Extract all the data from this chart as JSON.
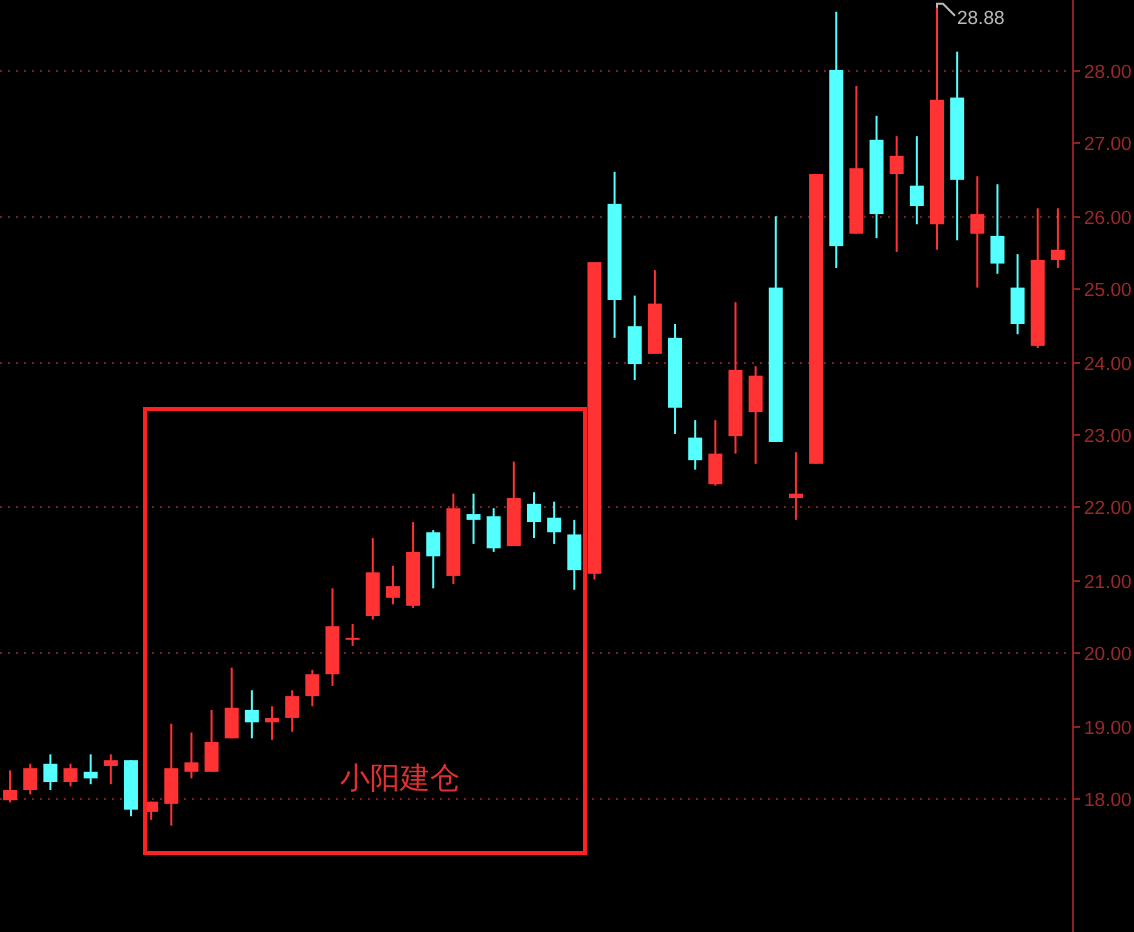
{
  "chart_data": {
    "type": "candlestick",
    "categories": [
      null,
      null,
      null,
      null,
      null,
      null,
      null,
      null,
      null,
      null,
      null,
      null,
      null,
      null,
      null,
      null,
      null,
      null,
      null,
      null,
      null,
      null,
      null,
      null,
      null,
      null,
      null,
      null,
      null,
      null,
      null,
      null,
      null,
      null,
      null,
      null,
      null,
      null,
      null,
      null,
      null,
      null,
      null,
      null,
      null,
      null,
      null,
      null,
      null,
      null,
      null,
      null,
      null
    ],
    "ohlc": [
      [
        17.97,
        18.38,
        17.94,
        18.11
      ],
      [
        18.11,
        18.47,
        18.05,
        18.41
      ],
      [
        18.47,
        18.6,
        18.11,
        18.22
      ],
      [
        18.22,
        18.47,
        18.16,
        18.41
      ],
      [
        18.36,
        18.6,
        18.19,
        18.27
      ],
      [
        18.44,
        18.6,
        18.19,
        18.52
      ],
      [
        18.52,
        18.52,
        17.75,
        17.84
      ],
      [
        17.81,
        17.95,
        17.7,
        17.95
      ],
      [
        17.92,
        19.02,
        17.62,
        18.41
      ],
      [
        18.36,
        18.9,
        18.27,
        18.49
      ],
      [
        18.36,
        19.21,
        18.36,
        18.77
      ],
      [
        18.82,
        19.79,
        18.82,
        19.24
      ],
      [
        19.21,
        19.48,
        18.82,
        19.04
      ],
      [
        19.04,
        19.26,
        18.8,
        19.1
      ],
      [
        19.1,
        19.48,
        18.91,
        19.4
      ],
      [
        19.4,
        19.76,
        19.26,
        19.7
      ],
      [
        19.7,
        20.88,
        19.54,
        20.36
      ],
      [
        20.18,
        20.39,
        20.09,
        20.2
      ],
      [
        20.5,
        21.57,
        20.45,
        21.1
      ],
      [
        20.75,
        21.19,
        20.66,
        20.91
      ],
      [
        20.64,
        21.79,
        20.61,
        21.38
      ],
      [
        21.65,
        21.68,
        20.88,
        21.32
      ],
      [
        21.05,
        22.18,
        20.94,
        21.98
      ],
      [
        21.9,
        22.18,
        21.49,
        21.82
      ],
      [
        21.87,
        21.98,
        21.38,
        21.43
      ],
      [
        21.46,
        22.62,
        21.46,
        22.12
      ],
      [
        22.04,
        22.2,
        21.57,
        21.79
      ],
      [
        21.85,
        22.07,
        21.49,
        21.65
      ],
      [
        21.62,
        21.82,
        20.86,
        21.13
      ],
      [
        21.08,
        25.36,
        21.0,
        25.36
      ],
      [
        26.16,
        26.6,
        24.32,
        24.84
      ],
      [
        24.48,
        24.9,
        23.74,
        23.96
      ],
      [
        24.1,
        25.25,
        24.1,
        24.79
      ],
      [
        24.32,
        24.51,
        23.0,
        23.36
      ],
      [
        22.95,
        23.19,
        22.51,
        22.64
      ],
      [
        22.31,
        23.19,
        22.29,
        22.73
      ],
      [
        22.97,
        24.81,
        22.73,
        23.88
      ],
      [
        23.3,
        23.93,
        22.59,
        23.8
      ],
      [
        25.01,
        25.99,
        22.89,
        22.89
      ],
      [
        22.12,
        22.75,
        21.82,
        22.18
      ],
      [
        22.59,
        26.57,
        22.59,
        26.57
      ],
      [
        28.0,
        28.8,
        25.28,
        25.58
      ],
      [
        25.75,
        27.78,
        25.75,
        26.65
      ],
      [
        27.04,
        27.37,
        25.69,
        26.02
      ],
      [
        26.57,
        27.09,
        25.5,
        26.82
      ],
      [
        26.41,
        27.09,
        25.88,
        26.13
      ],
      [
        25.88,
        28.88,
        25.53,
        27.59
      ],
      [
        27.62,
        28.25,
        25.66,
        26.49
      ],
      [
        25.75,
        26.54,
        25.01,
        26.02
      ],
      [
        25.72,
        26.43,
        25.2,
        25.34
      ],
      [
        25.01,
        25.47,
        24.37,
        24.51
      ],
      [
        24.21,
        26.1,
        24.18,
        25.39
      ],
      [
        25.39,
        26.1,
        25.28,
        25.53
      ]
    ],
    "colors": [
      "#ff3333",
      "#ff3333",
      "#54ffff",
      "#ff3333",
      "#54ffff",
      "#ff3333",
      "#54ffff",
      "#ff3333",
      "#ff3333",
      "#ff3333",
      "#ff3333",
      "#ff3333",
      "#54ffff",
      "#ff3333",
      "#ff3333",
      "#ff3333",
      "#ff3333",
      "#ff3333",
      "#ff3333",
      "#ff3333",
      "#ff3333",
      "#54ffff",
      "#ff3333",
      "#54ffff",
      "#54ffff",
      "#ff3333",
      "#54ffff",
      "#54ffff",
      "#54ffff",
      "#ff3333",
      "#54ffff",
      "#54ffff",
      "#ff3333",
      "#54ffff",
      "#54ffff",
      "#ff3333",
      "#ff3333",
      "#ff3333",
      "#54ffff",
      "#ff3333",
      "#ff3333",
      "#54ffff",
      "#ff3333",
      "#54ffff",
      "#ff3333",
      "#54ffff",
      "#ff3333",
      "#54ffff",
      "#ff3333",
      "#54ffff",
      "#54ffff",
      "#ff3333",
      "#ff3333"
    ],
    "ylim": [
      16.16,
      28.96
    ],
    "yticks": [
      {
        "value": 18,
        "label": "18.00"
      },
      {
        "value": 19,
        "label": "19.00"
      },
      {
        "value": 20,
        "label": "20.00"
      },
      {
        "value": 21,
        "label": "21.00"
      },
      {
        "value": 22,
        "label": "22.00"
      },
      {
        "value": 23,
        "label": "23.00"
      },
      {
        "value": 24,
        "label": "24.00"
      },
      {
        "value": 25,
        "label": "25.00"
      },
      {
        "value": 26,
        "label": "26.00"
      },
      {
        "value": 27,
        "label": "27.00"
      },
      {
        "value": 28,
        "label": "28.00"
      }
    ],
    "ref_lines": [
      {
        "axis": "y",
        "value": 18,
        "color": "#7a1f1f",
        "line_style": "dotted"
      },
      {
        "axis": "y",
        "value": 20,
        "color": "#7a1f1f",
        "line_style": "dotted"
      },
      {
        "axis": "y",
        "value": 22,
        "color": "#7a1f1f",
        "line_style": "dotted"
      },
      {
        "axis": "y",
        "value": 24,
        "color": "#7a1f1f",
        "line_style": "dotted"
      },
      {
        "axis": "y",
        "value": 26,
        "color": "#7a1f1f",
        "line_style": "dotted"
      },
      {
        "axis": "y",
        "value": 28,
        "color": "#7a1f1f",
        "line_style": "dotted"
      }
    ],
    "annotations": [
      "28.88",
      "小阳建仓"
    ]
  }
}
